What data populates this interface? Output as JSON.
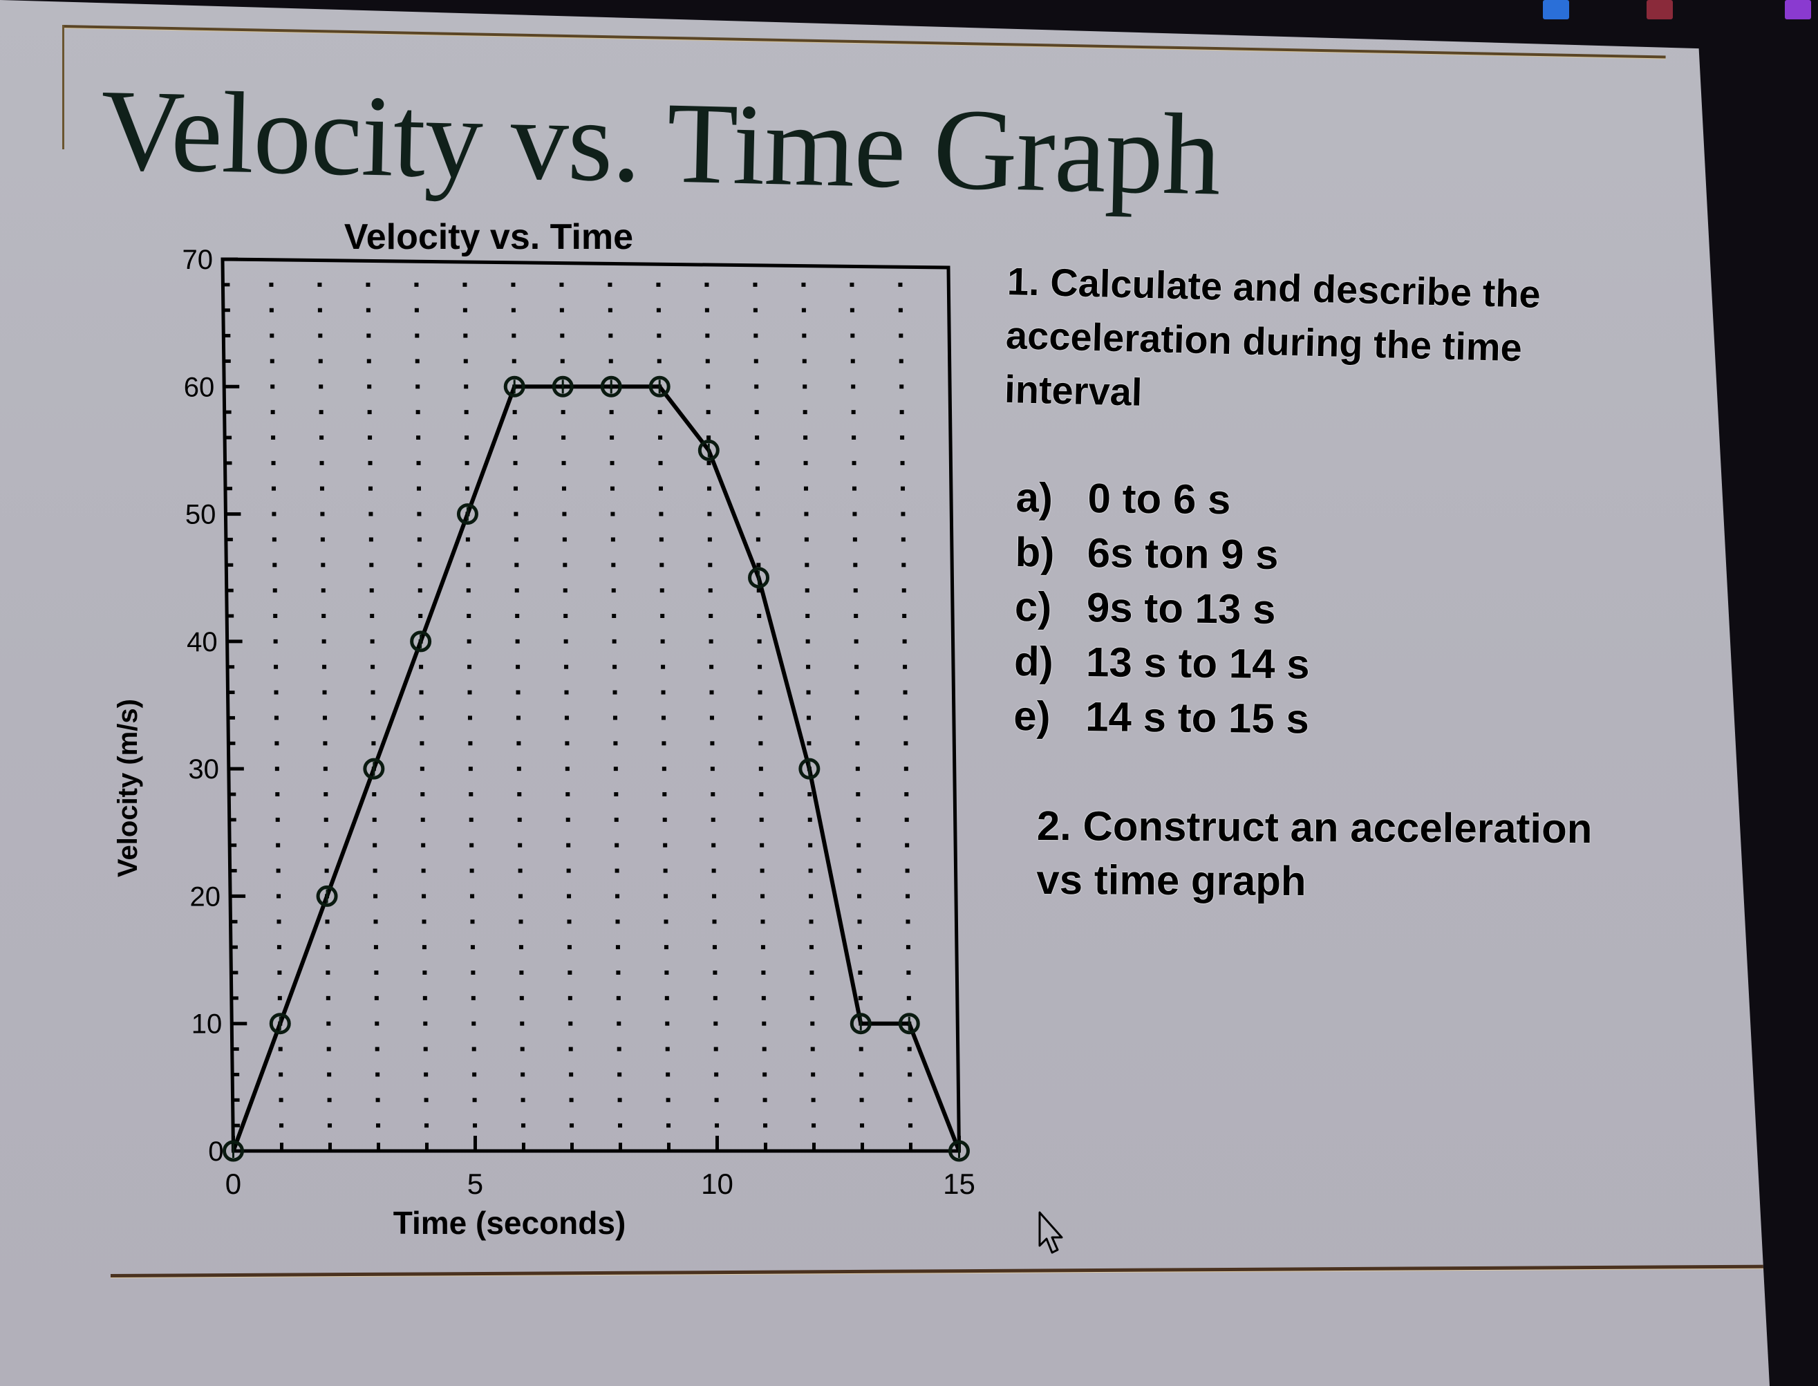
{
  "slide": {
    "title": "Velocity vs. Time Graph",
    "question1": {
      "lines": [
        "1. Calculate and describe  the",
        "acceleration during the time",
        "interval"
      ]
    },
    "intervals": [
      {
        "label": "a)",
        "text": "0 to 6 s"
      },
      {
        "label": "b)",
        "text": "6s ton 9 s"
      },
      {
        "label": "c)",
        "text": "9s to 13 s"
      },
      {
        "label": "d)",
        "text": "13 s to 14 s"
      },
      {
        "label": "e)",
        "text": "14 s to 15 s"
      }
    ],
    "question2": {
      "lines": [
        "2. Construct an acceleration",
        "vs time graph"
      ]
    },
    "colors": {
      "background": "#b6b5be",
      "rule": "#5a4526",
      "text": "#000000",
      "title": "#10201a"
    }
  },
  "chart_data": {
    "type": "line",
    "title": "Velocity vs. Time",
    "xlabel": "Time (seconds)",
    "ylabel": "Velocity (m/s)",
    "x": [
      0,
      1,
      2,
      3,
      4,
      5,
      6,
      7,
      8,
      9,
      10,
      11,
      12,
      13,
      14,
      15
    ],
    "series": [
      {
        "name": "velocity",
        "values": [
          0,
          10,
          20,
          30,
          40,
          50,
          60,
          60,
          60,
          60,
          55,
          45,
          30,
          10,
          10,
          0
        ],
        "marker": "open-circle",
        "color": "#000000"
      }
    ],
    "xlim": [
      0,
      15
    ],
    "ylim": [
      0,
      70
    ],
    "xticks": [
      0,
      5,
      10,
      15
    ],
    "yticks": [
      0,
      10,
      20,
      30,
      40,
      50,
      60,
      70
    ],
    "x_minor_step": 1,
    "y_minor_step": 2,
    "grid": "dotted",
    "legend": false
  }
}
